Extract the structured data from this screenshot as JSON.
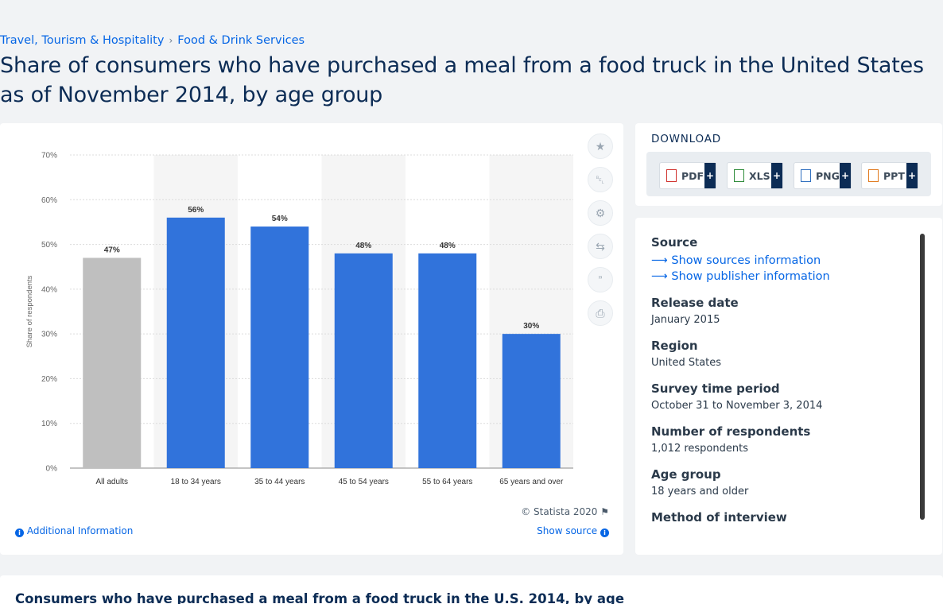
{
  "breadcrumb": {
    "items": [
      "Travel, Tourism & Hospitality",
      "Food & Drink Services"
    ],
    "separator": "›"
  },
  "page_title": "Share of consumers who have purchased a meal from a food truck in the United States as of November 2014, by age group",
  "chart_data": {
    "type": "bar",
    "categories": [
      "All adults",
      "18 to 34 years",
      "35 to 44 years",
      "45 to 54 years",
      "55 to 64 years",
      "65 years and over"
    ],
    "values": [
      47,
      56,
      54,
      48,
      48,
      30
    ],
    "data_labels": [
      "47%",
      "56%",
      "54%",
      "48%",
      "48%",
      "30%"
    ],
    "bar_colors": [
      "#bfbfbf",
      "#3173db",
      "#3173db",
      "#3173db",
      "#3173db",
      "#3173db"
    ],
    "ylabel": "Share of respondents",
    "xlabel": "",
    "ylim": [
      0,
      70
    ],
    "yticks": [
      0,
      10,
      20,
      30,
      40,
      50,
      60,
      70
    ],
    "ytick_labels": [
      "0%",
      "10%",
      "20%",
      "30%",
      "40%",
      "50%",
      "60%",
      "70%"
    ],
    "grid": true,
    "highlight_band_color": "#f5f5f5"
  },
  "chart_footer": {
    "copyright": "© Statista 2020",
    "additional_info": "Additional Information",
    "show_source": "Show source"
  },
  "tools": [
    {
      "name": "favorite-star-icon",
      "glyph": "★"
    },
    {
      "name": "notification-bell-icon",
      "glyph": "␇"
    },
    {
      "name": "settings-gear-icon",
      "glyph": "⚙"
    },
    {
      "name": "share-icon",
      "glyph": "⇆"
    },
    {
      "name": "cite-quote-icon",
      "glyph": "”"
    },
    {
      "name": "print-icon",
      "glyph": "⎙"
    }
  ],
  "download": {
    "title": "DOWNLOAD",
    "buttons": [
      {
        "label": "PDF",
        "icon_color": "#d0312d"
      },
      {
        "label": "XLS",
        "icon_color": "#2e8b3a"
      },
      {
        "label": "PNG",
        "icon_color": "#2f6fbf"
      },
      {
        "label": "PPT",
        "icon_color": "#e07a1f"
      }
    ],
    "plus": "+"
  },
  "source_panel": {
    "source_heading": "Source",
    "show_sources": "Show sources information",
    "show_publisher": "Show publisher information",
    "fields": [
      {
        "label": "Release date",
        "value": "January 2015"
      },
      {
        "label": "Region",
        "value": "United States"
      },
      {
        "label": "Survey time period",
        "value": "October 31 to November 3, 2014"
      },
      {
        "label": "Number of respondents",
        "value": "1,012 respondents"
      },
      {
        "label": "Age group",
        "value": "18 years and older"
      },
      {
        "label": "Method of interview",
        "value": ""
      }
    ]
  },
  "bottom_title": "Consumers who have purchased a meal from a food truck in the U.S. 2014, by age"
}
